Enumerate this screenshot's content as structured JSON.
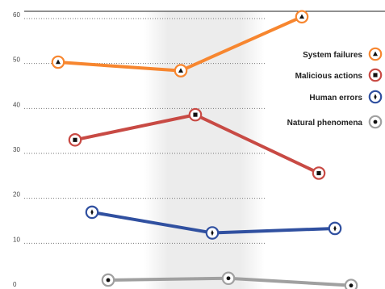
{
  "chart_data": {
    "type": "line",
    "title": "",
    "xlabel": "",
    "ylabel": "",
    "x": [
      1,
      2,
      3
    ],
    "ylim": [
      0,
      60
    ],
    "y_ticks": [
      "0",
      "10",
      "20",
      "30",
      "40",
      "50",
      "60"
    ],
    "grid": "horizontal dotted",
    "legend_position": "right",
    "series": [
      {
        "name": "System failures",
        "color": "#f7862f",
        "marker": "up-triangle-icon",
        "x": [
          1,
          2,
          3
        ],
        "values": [
          50.3,
          48.4,
          60.4
        ]
      },
      {
        "name": "Malicious actions",
        "color": "#c84a44",
        "marker": "square-icon",
        "x": [
          1,
          2,
          3
        ],
        "values": [
          33.0,
          38.6,
          25.6
        ]
      },
      {
        "name": "Human errors",
        "color": "#3050a0",
        "marker": "diamond-icon",
        "x": [
          1,
          2,
          3
        ],
        "values": [
          16.9,
          12.3,
          13.3
        ]
      },
      {
        "name": "Natural phenomena",
        "color": "#a0a0a0",
        "marker": "dot-icon",
        "x": [
          1,
          2,
          3
        ],
        "values": [
          1.8,
          2.2,
          0.6
        ]
      }
    ]
  }
}
